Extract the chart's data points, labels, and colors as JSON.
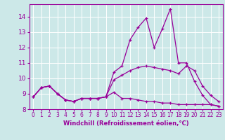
{
  "xlabel": "Windchill (Refroidissement éolien,°C)",
  "x": [
    0,
    1,
    2,
    3,
    4,
    5,
    6,
    7,
    8,
    9,
    10,
    11,
    12,
    13,
    14,
    15,
    16,
    17,
    18,
    19,
    20,
    21,
    22,
    23
  ],
  "line1": [
    8.8,
    9.4,
    9.5,
    9.0,
    8.6,
    8.5,
    8.7,
    8.7,
    8.7,
    8.8,
    10.4,
    10.8,
    12.5,
    13.3,
    13.9,
    12.0,
    13.2,
    14.5,
    11.0,
    11.0,
    9.8,
    8.9,
    8.3,
    8.2
  ],
  "line2": [
    8.8,
    9.4,
    9.5,
    9.0,
    8.6,
    8.5,
    8.7,
    8.7,
    8.7,
    8.8,
    9.9,
    10.2,
    10.5,
    10.7,
    10.8,
    10.7,
    10.6,
    10.5,
    10.3,
    10.8,
    10.5,
    9.5,
    8.9,
    8.5
  ],
  "line3": [
    8.8,
    9.4,
    9.5,
    9.0,
    8.6,
    8.5,
    8.7,
    8.7,
    8.7,
    8.8,
    9.1,
    8.7,
    8.7,
    8.6,
    8.5,
    8.5,
    8.4,
    8.4,
    8.3,
    8.3,
    8.3,
    8.3,
    8.3,
    8.2
  ],
  "line_color": "#990099",
  "bg_color": "#cce8e8",
  "grid_color": "#ffffff",
  "ylim": [
    8.0,
    14.8
  ],
  "yticks": [
    8,
    9,
    10,
    11,
    12,
    13,
    14
  ],
  "xlim": [
    -0.5,
    23.5
  ],
  "xticks": [
    0,
    1,
    2,
    3,
    4,
    5,
    6,
    7,
    8,
    9,
    10,
    11,
    12,
    13,
    14,
    15,
    16,
    17,
    18,
    19,
    20,
    21,
    22,
    23
  ]
}
